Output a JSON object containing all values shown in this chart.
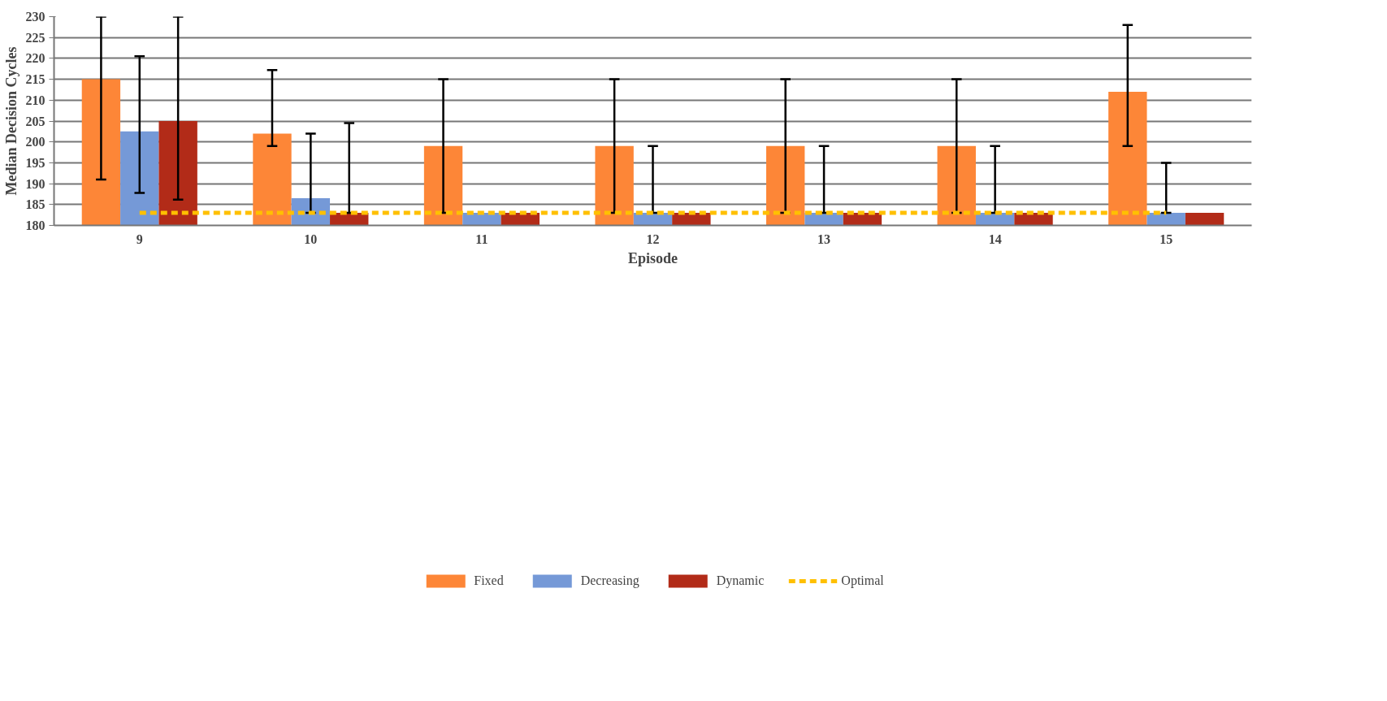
{
  "chart_data": {
    "type": "bar",
    "xlabel": "Episode",
    "ylabel": "Median Decision Cycles",
    "categories": [
      "9",
      "10",
      "11",
      "12",
      "13",
      "14",
      "15"
    ],
    "ylim": [
      180,
      230
    ],
    "yticks": [
      180,
      185,
      190,
      195,
      200,
      205,
      210,
      215,
      220,
      225,
      230
    ],
    "grid": "y",
    "legend": "bottom",
    "series": [
      {
        "name": "Fixed",
        "color": "#fd8637",
        "values": [
          215,
          202,
          199,
          199,
          199,
          199,
          212
        ],
        "errors": [
          [
            191,
            230
          ],
          [
            199,
            217.2
          ],
          [
            183,
            215
          ],
          [
            183,
            215
          ],
          [
            183,
            215
          ],
          [
            183,
            215
          ],
          [
            199,
            228
          ]
        ]
      },
      {
        "name": "Decreasing",
        "color": "#7599d7",
        "values": [
          202.5,
          186.5,
          183,
          183,
          183,
          183,
          183
        ],
        "errors": [
          [
            187.8,
            220.5
          ],
          [
            183,
            202
          ],
          null,
          [
            183,
            199
          ],
          [
            183,
            199
          ],
          [
            183,
            199
          ],
          [
            183,
            195
          ]
        ]
      },
      {
        "name": "Dynamic",
        "color": "#b22b18",
        "values": [
          205,
          183,
          183,
          183,
          183,
          183,
          183
        ],
        "errors": [
          [
            186.2,
            230
          ],
          [
            183,
            204.5
          ],
          null,
          null,
          null,
          null,
          null
        ]
      },
      {
        "name": "Optimal",
        "type": "line",
        "color": "#ffc000",
        "line_style": "dashed",
        "values": [
          183,
          183,
          183,
          183,
          183,
          183,
          183
        ]
      }
    ]
  }
}
